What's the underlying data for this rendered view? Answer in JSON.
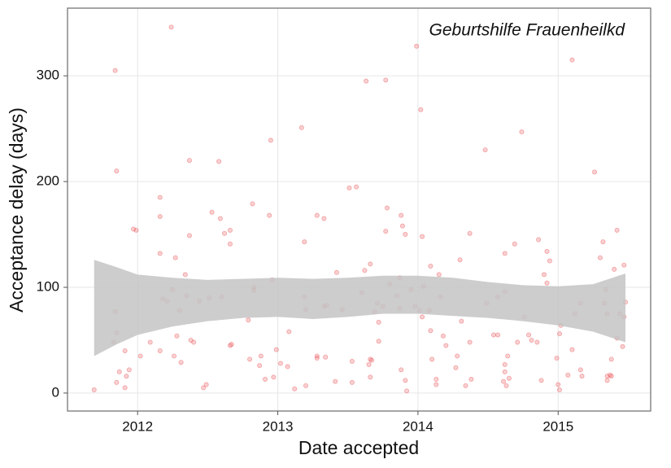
{
  "chart_data": {
    "type": "scatter",
    "annotation": "Geburtshilfe Frauenheilkd",
    "xlabel": "Date accepted",
    "ylabel": "Acceptance delay (days)",
    "color": "#e8474b",
    "x": [
      2011.69,
      2011.84,
      2011.85,
      2011.84,
      2011.85,
      2011.83,
      2011.85,
      2011.87,
      2011.91,
      2011.92,
      2011.94,
      2011.91,
      2011.97,
      2011.99,
      2012.02,
      2012.09,
      2012.16,
      2012.16,
      2012.16,
      2012.16,
      2012.18,
      2012.21,
      2012.24,
      2012.25,
      2012.27,
      2012.26,
      2012.28,
      2012.3,
      2012.31,
      2012.34,
      2012.35,
      2012.37,
      2012.37,
      2012.38,
      2012.4,
      2012.44,
      2012.47,
      2012.49,
      2012.51,
      2012.53,
      2012.58,
      2012.59,
      2012.6,
      2012.62,
      2012.66,
      2012.66,
      2012.66,
      2012.67,
      2012.79,
      2012.8,
      2012.82,
      2012.83,
      2012.83,
      2012.87,
      2012.88,
      2012.91,
      2012.94,
      2012.95,
      2012.96,
      2012.97,
      2012.99,
      2013.02,
      2013.07,
      2013.08,
      2013.12,
      2013.17,
      2013.19,
      2013.19,
      2013.2,
      2013.2,
      2013.28,
      2013.28,
      2013.28,
      2013.33,
      2013.34,
      2013.33,
      2013.35,
      2013.41,
      2013.42,
      2013.46,
      2013.51,
      2013.56,
      2013.53,
      2013.53,
      2013.6,
      2013.62,
      2013.63,
      2013.66,
      2013.66,
      2013.66,
      2013.65,
      2013.67,
      2013.69,
      2013.71,
      2013.72,
      2013.72,
      2013.75,
      2013.77,
      2013.77,
      2013.78,
      2013.8,
      2013.85,
      2013.87,
      2013.87,
      2013.88,
      2013.89,
      2013.91,
      2013.91,
      2013.92,
      2013.88,
      2013.95,
      2013.98,
      2013.99,
      2014.02,
      2014.01,
      2014.03,
      2014.03,
      2014.04,
      2014.08,
      2014.09,
      2014.09,
      2014.1,
      2014.13,
      2014.13,
      2014.15,
      2014.16,
      2014.18,
      2014.2,
      2014.27,
      2014.28,
      2014.3,
      2014.31,
      2014.34,
      2014.37,
      2014.37,
      2014.38,
      2014.49,
      2014.48,
      2014.54,
      2014.57,
      2014.57,
      2014.62,
      2014.62,
      2014.61,
      2014.62,
      2014.62,
      2014.63,
      2014.64,
      2014.65,
      2014.69,
      2014.71,
      2014.74,
      2014.76,
      2014.79,
      2014.81,
      2014.85,
      2014.86,
      2014.88,
      2014.9,
      2014.92,
      2014.92,
      2014.94,
      2014.99,
      2015.01,
      2015.0,
      2015.02,
      2015.01,
      2015.07,
      2015.1,
      2015.1,
      2015.12,
      2015.16,
      2015.16,
      2015.17,
      2015.26,
      2015.3,
      2015.32,
      2015.33,
      2015.34,
      2015.35,
      2015.35,
      2015.35,
      2015.37,
      2015.38,
      2015.38,
      2015.4,
      2015.42,
      2015.42,
      2015.44,
      2015.46,
      2015.47,
      2015.47,
      2015.48
    ],
    "values": [
      3,
      305,
      210,
      77,
      57,
      48,
      10,
      20,
      40,
      16,
      22,
      5,
      155,
      154,
      35,
      48,
      185,
      167,
      132,
      40,
      89,
      87,
      346,
      98,
      128,
      35,
      54,
      78,
      29,
      112,
      92,
      149,
      220,
      50,
      48,
      87,
      5,
      8,
      90,
      171,
      219,
      165,
      91,
      151,
      154,
      141,
      45,
      46,
      69,
      32,
      179,
      97,
      100,
      26,
      35,
      13,
      168,
      239,
      107,
      15,
      41,
      28,
      25,
      58,
      4,
      251,
      91,
      143,
      79,
      7,
      168,
      35,
      33,
      165,
      34,
      82,
      83,
      11,
      114,
      79,
      194,
      195,
      30,
      10,
      95,
      116,
      295,
      122,
      32,
      15,
      27,
      31,
      77,
      85,
      67,
      49,
      82,
      296,
      153,
      175,
      103,
      92,
      109,
      80,
      168,
      158,
      150,
      12,
      2,
      22,
      98,
      82,
      328,
      268,
      78,
      72,
      148,
      101,
      78,
      59,
      120,
      32,
      8,
      13,
      112,
      91,
      54,
      45,
      24,
      35,
      126,
      68,
      7,
      151,
      48,
      13,
      85,
      230,
      55,
      55,
      91,
      132,
      96,
      11,
      27,
      20,
      7,
      35,
      14,
      141,
      48,
      247,
      72,
      55,
      50,
      48,
      145,
      12,
      112,
      104,
      134,
      125,
      33,
      56,
      8,
      64,
      3,
      17,
      315,
      41,
      75,
      85,
      22,
      16,
      209,
      128,
      143,
      85,
      98,
      75,
      16,
      12,
      17,
      32,
      16,
      117,
      154,
      52,
      75,
      44,
      72,
      121,
      86
    ],
    "band": {
      "color": "#c4c4c4",
      "x": [
        2011.69,
        2011.85,
        2012,
        2012.25,
        2012.5,
        2012.75,
        2013,
        2013.25,
        2013.5,
        2013.75,
        2014,
        2014.25,
        2014.5,
        2014.75,
        2015,
        2015.25,
        2015.48
      ],
      "lower": [
        35,
        46,
        55,
        63,
        68,
        71,
        72,
        70,
        72,
        75,
        75,
        73,
        71,
        68,
        64,
        58,
        48
      ],
      "upper": [
        126,
        119,
        112,
        109,
        107,
        108,
        109,
        108,
        109,
        111,
        111,
        109,
        105,
        102,
        101,
        103,
        113
      ]
    },
    "xlim": [
      2011.5,
      2015.66
    ],
    "ylim": [
      -17,
      364
    ],
    "xticks": [
      2012,
      2013,
      2014,
      2015
    ],
    "yticks": [
      0,
      100,
      200,
      300
    ],
    "grid": true
  }
}
